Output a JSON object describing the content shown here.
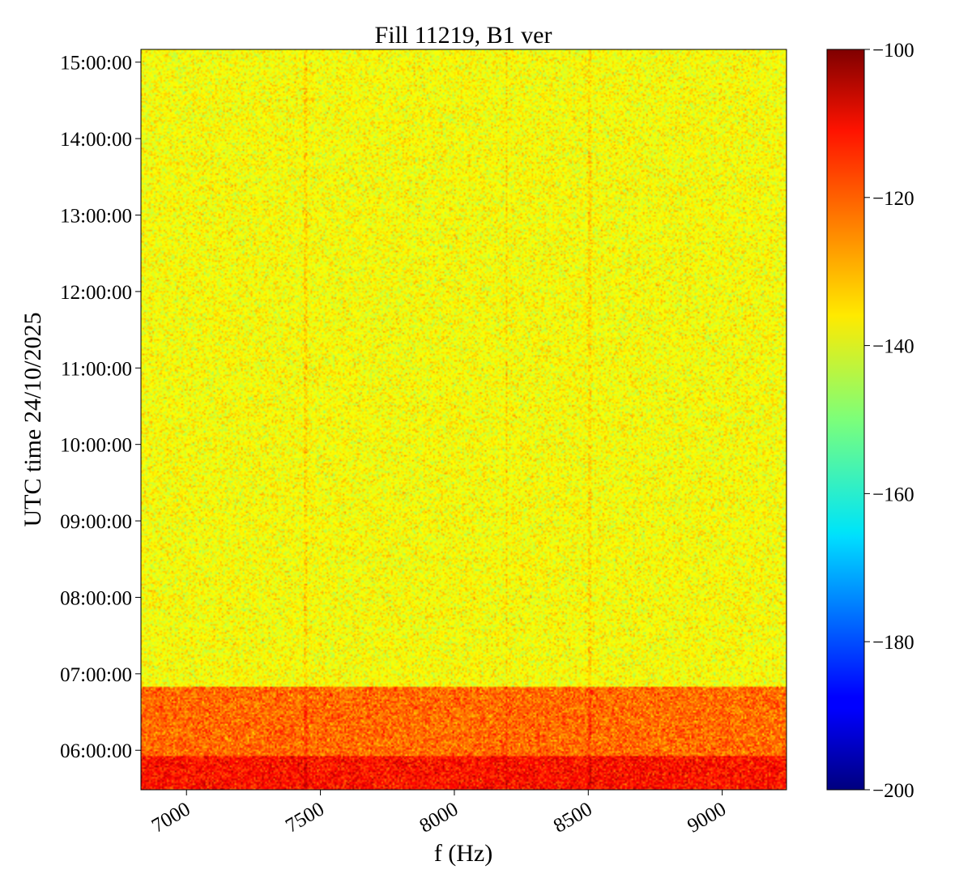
{
  "chart_data": {
    "type": "heatmap",
    "title": "Fill 11219, B1 ver",
    "xlabel": "f (Hz)",
    "ylabel": "UTC time 24/10/2025",
    "xlim": [
      6830,
      9240
    ],
    "x_ticks": [
      7000,
      7500,
      8000,
      8500,
      9000
    ],
    "x_tick_labels": [
      "7000",
      "7500",
      "8000",
      "8500",
      "9000"
    ],
    "y_ticks": [
      "06:00:00",
      "07:00:00",
      "08:00:00",
      "09:00:00",
      "10:00:00",
      "11:00:00",
      "12:00:00",
      "13:00:00",
      "14:00:00",
      "15:00:00"
    ],
    "ylim_time": [
      "05:29:00",
      "15:10:00"
    ],
    "colormap": "jet",
    "colorbar": {
      "range": [
        -200,
        -100
      ],
      "ticks": [
        -100,
        -120,
        -140,
        -160,
        -180,
        -200
      ],
      "tick_labels": [
        "−100",
        "−120",
        "−140",
        "−160",
        "−180",
        "−200"
      ]
    },
    "regions": [
      {
        "from": "05:29:00",
        "to": "05:55:00",
        "level_db": -114
      },
      {
        "from": "05:55:00",
        "to": "06:50:00",
        "level_db": -123
      },
      {
        "from": "06:50:00",
        "to": "15:10:00",
        "level_db": -138
      }
    ],
    "vertical_lines_hz": [
      7445,
      8505,
      8195
    ],
    "grid": false
  }
}
